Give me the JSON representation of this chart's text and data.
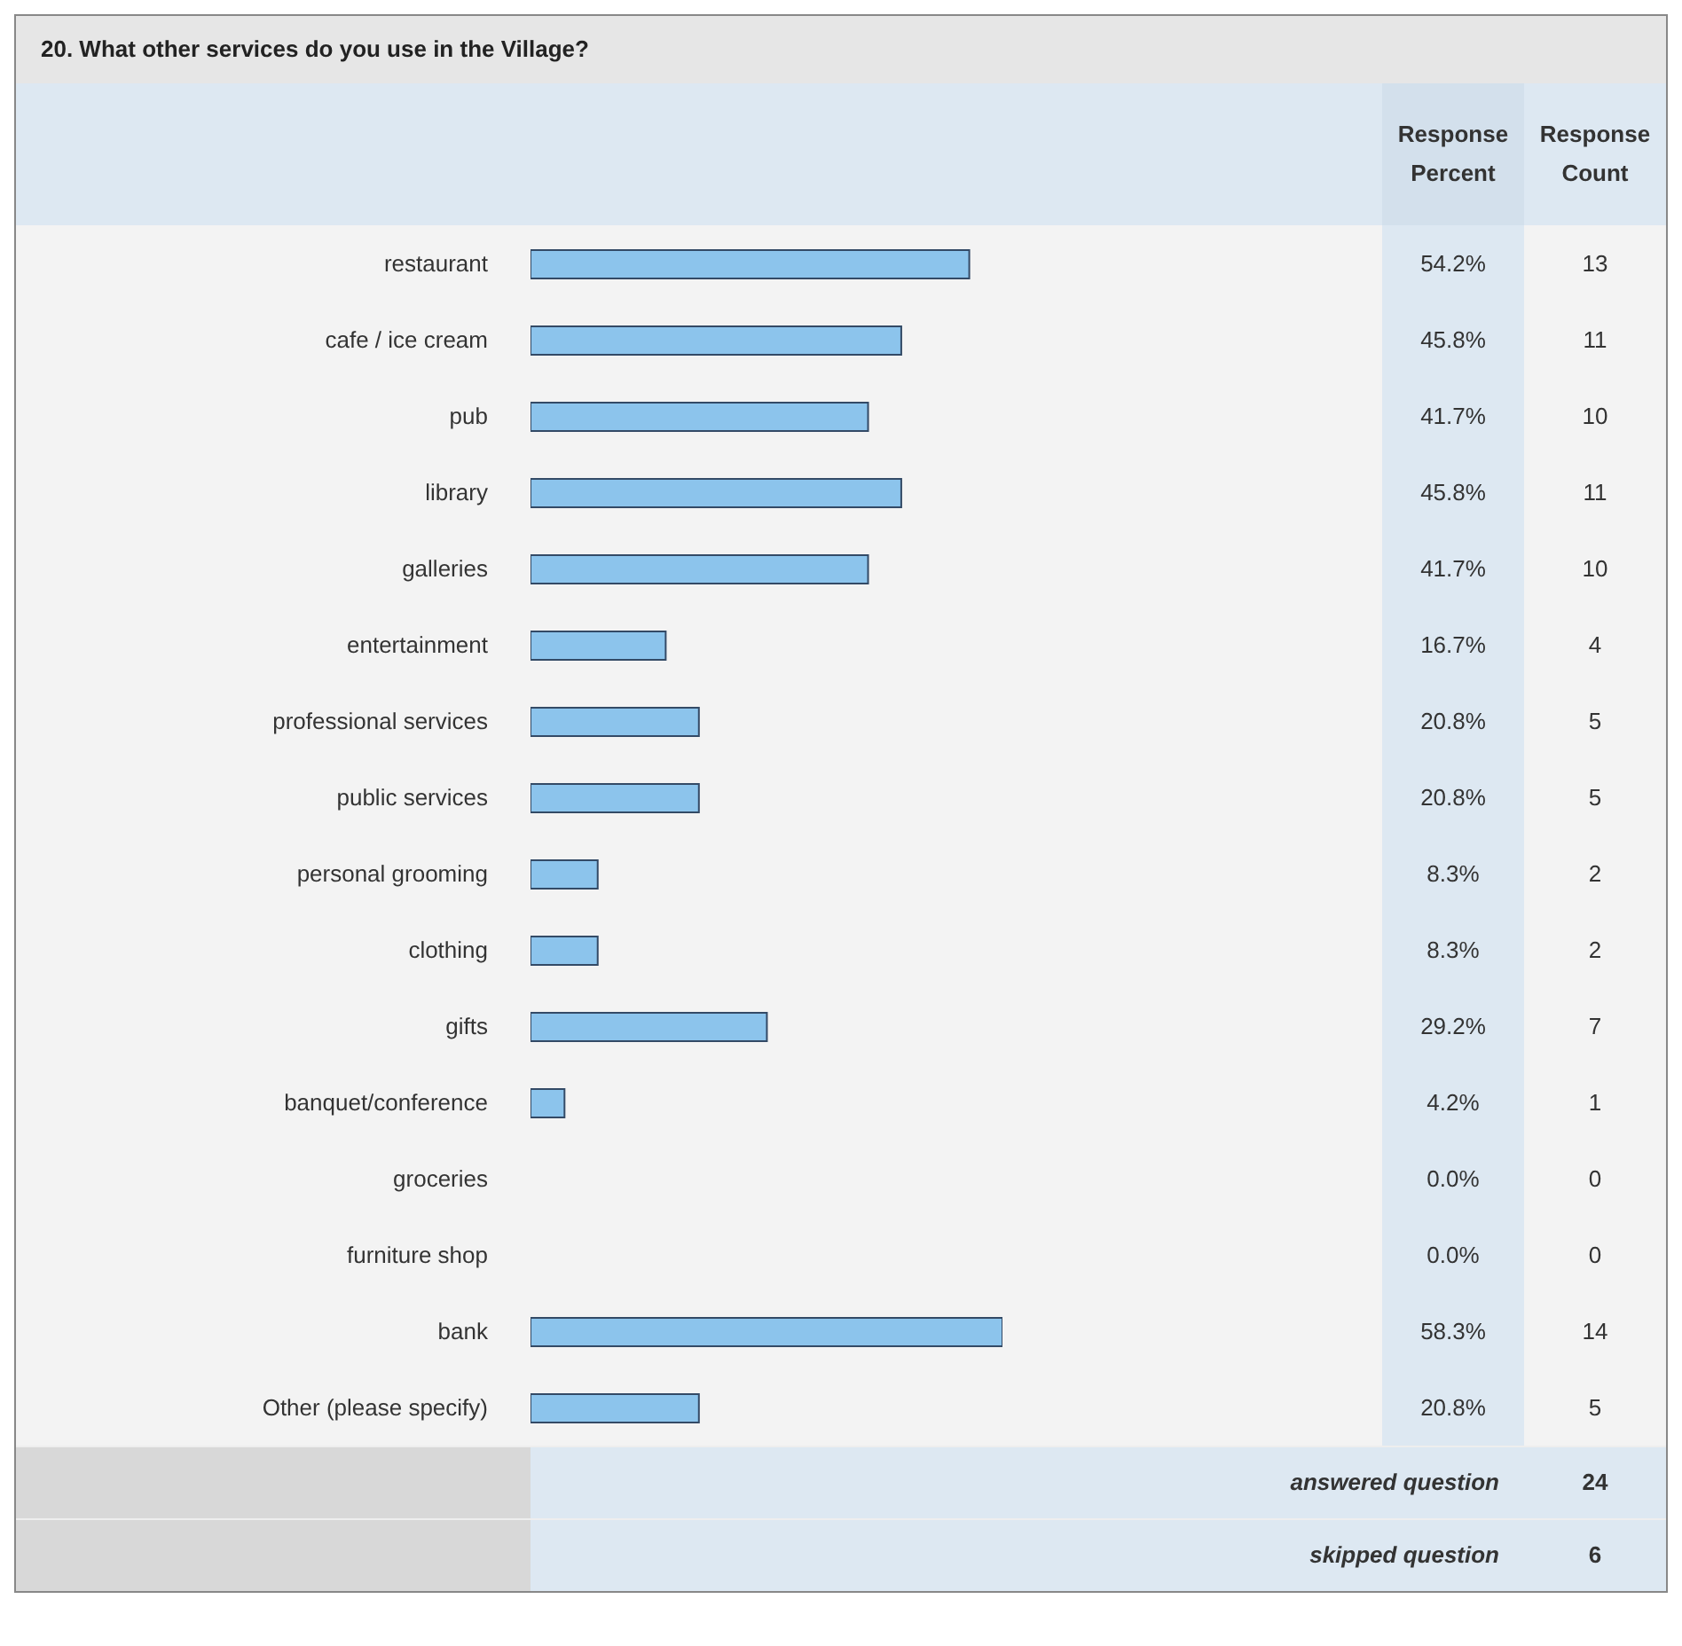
{
  "chart_data": {
    "type": "bar",
    "orientation": "horizontal",
    "title": "20. What other services do you use in the Village?",
    "categories": [
      "restaurant",
      "cafe / ice cream",
      "pub",
      "library",
      "galleries",
      "entertainment",
      "professional services",
      "public services",
      "personal grooming",
      "clothing",
      "gifts",
      "banquet/conference",
      "groceries",
      "furniture shop",
      "bank",
      "Other (please specify)"
    ],
    "series": [
      {
        "name": "Response Percent",
        "color": "#8cc4ec",
        "values": [
          54.2,
          45.8,
          41.7,
          45.8,
          41.7,
          16.7,
          20.8,
          20.8,
          8.3,
          8.3,
          29.2,
          4.2,
          0,
          0,
          58.3,
          20.8
        ],
        "value_labels": [
          "54.2%",
          "45.8%",
          "41.7%",
          "45.8%",
          "41.7%",
          "16.7%",
          "20.8%",
          "20.8%",
          "8.3%",
          "8.3%",
          "29.2%",
          "4.2%",
          "0.0%",
          "0.0%",
          "58.3%",
          "20.8%"
        ]
      }
    ],
    "tick_labels": false,
    "annotations": [
      "Response Count",
      "13",
      "11",
      "10",
      "11",
      "10",
      "4",
      "5",
      "5",
      "2",
      "2",
      "7",
      "1",
      "0",
      "0",
      "14",
      "5",
      "answered question",
      "24",
      "skipped question",
      "6"
    ]
  }
}
